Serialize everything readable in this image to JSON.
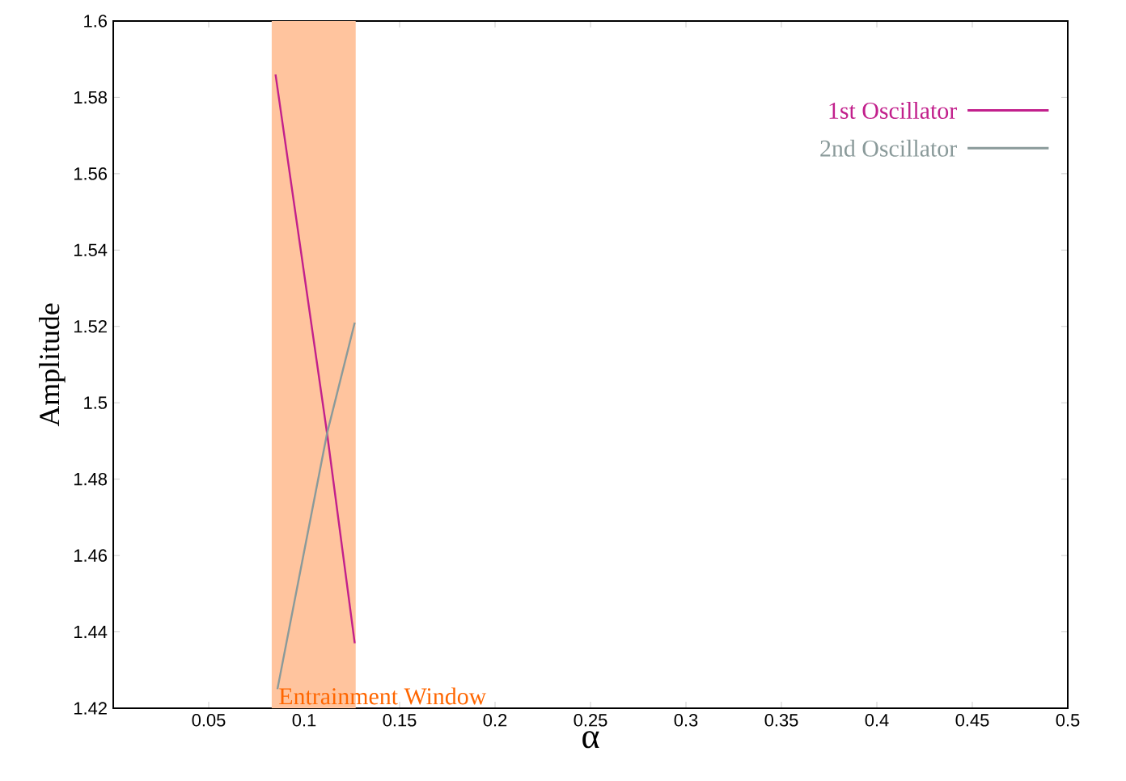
{
  "chart_data": {
    "type": "line",
    "xlabel": "α",
    "ylabel": "Amplitude",
    "xlim": [
      0,
      0.5
    ],
    "xticks": [
      0.05,
      0.1,
      0.15,
      0.2,
      0.25,
      0.3,
      0.35,
      0.4,
      0.45,
      0.5
    ],
    "ylim": [
      1.42,
      1.6
    ],
    "yticks": [
      1.42,
      1.44,
      1.46,
      1.48,
      1.5,
      1.52,
      1.54,
      1.56,
      1.58,
      1.6
    ],
    "series": [
      {
        "name": "1st Oscillator",
        "color": "#c2208c",
        "x": [
          0.085,
          0.112,
          0.1265
        ],
        "values": [
          1.586,
          1.492,
          1.437
        ]
      },
      {
        "name": "2nd Oscillator",
        "color": "#8a9a9a",
        "x": [
          0.086,
          0.112,
          0.1265
        ],
        "values": [
          1.425,
          1.492,
          1.521
        ]
      }
    ],
    "bands": [
      {
        "axis": "x",
        "from": 0.083,
        "to": 0.127,
        "label": "Entrainment Window",
        "color": "#ffc49e"
      }
    ],
    "legend": "top right",
    "grid": false,
    "line_style": "solid",
    "marker": "none"
  }
}
